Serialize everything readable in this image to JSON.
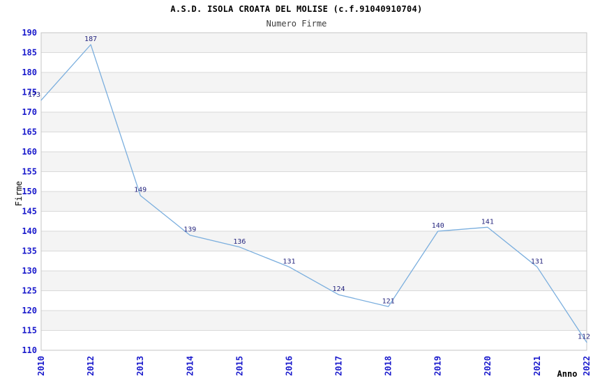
{
  "chart_data": {
    "type": "line",
    "title": "A.S.D. ISOLA CROATA DEL MOLISE (c.f.91040910704)",
    "subtitle": "Numero Firme",
    "xlabel": "Anno",
    "ylabel": "Firme",
    "categories": [
      "2010",
      "2012",
      "2013",
      "2014",
      "2015",
      "2016",
      "2017",
      "2018",
      "2019",
      "2020",
      "2021",
      "2022"
    ],
    "values": [
      173,
      187,
      149,
      139,
      136,
      131,
      124,
      121,
      140,
      141,
      131,
      112
    ],
    "ylim": [
      110,
      190
    ],
    "ytick_step": 5,
    "grid": true,
    "alternating_bands": true,
    "legend": false,
    "colors": {
      "line": "#7aaede",
      "data_label": "#26267f",
      "tick_label": "#1a1acc",
      "grid_line": "#d9d9d9",
      "band_fill": "#f4f4f4",
      "plot_border": "#c6c6c6",
      "title": "#000000",
      "subtitle": "#3c3c3c",
      "axis_label": "#000000"
    }
  }
}
